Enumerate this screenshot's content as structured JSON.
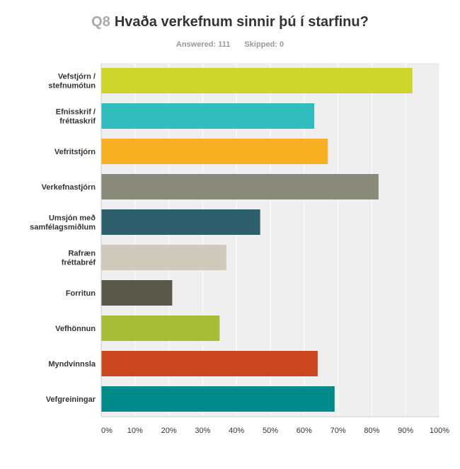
{
  "question": {
    "number": "Q8",
    "text": "Hvaða verkefnum sinnir þú í starfinu?"
  },
  "stats": {
    "answered_label": "Answered:",
    "answered": "111",
    "skipped_label": "Skipped:",
    "skipped": "0"
  },
  "chart_data": {
    "type": "bar",
    "orientation": "horizontal",
    "categories": [
      [
        "Vefstjórn /",
        "stefnumótun"
      ],
      [
        "Efnisskrif /",
        "fréttaskrif"
      ],
      [
        "Vefritstjórn"
      ],
      [
        "Verkefnastjórn"
      ],
      [
        "Umsjón með",
        "samfélagsmiðlum"
      ],
      [
        "Rafræn",
        "fréttabréf"
      ],
      [
        "Forritun"
      ],
      [
        "Vefhönnun"
      ],
      [
        "Myndvinnsla"
      ],
      [
        "Vefgreiningar"
      ]
    ],
    "values": [
      92,
      63,
      67,
      82,
      47,
      37,
      21,
      35,
      64,
      69
    ],
    "colors": [
      "#cdd52a",
      "#31bdbd",
      "#f7b022",
      "#898a7a",
      "#2d5f6c",
      "#cecbbd",
      "#5a5849",
      "#a7bd37",
      "#c9461e",
      "#008a89"
    ],
    "xlim": [
      0,
      100
    ],
    "xticks": [
      "0%",
      "10%",
      "20%",
      "30%",
      "40%",
      "50%",
      "60%",
      "70%",
      "80%",
      "90%",
      "100%"
    ],
    "grid": true,
    "legend": "none"
  }
}
